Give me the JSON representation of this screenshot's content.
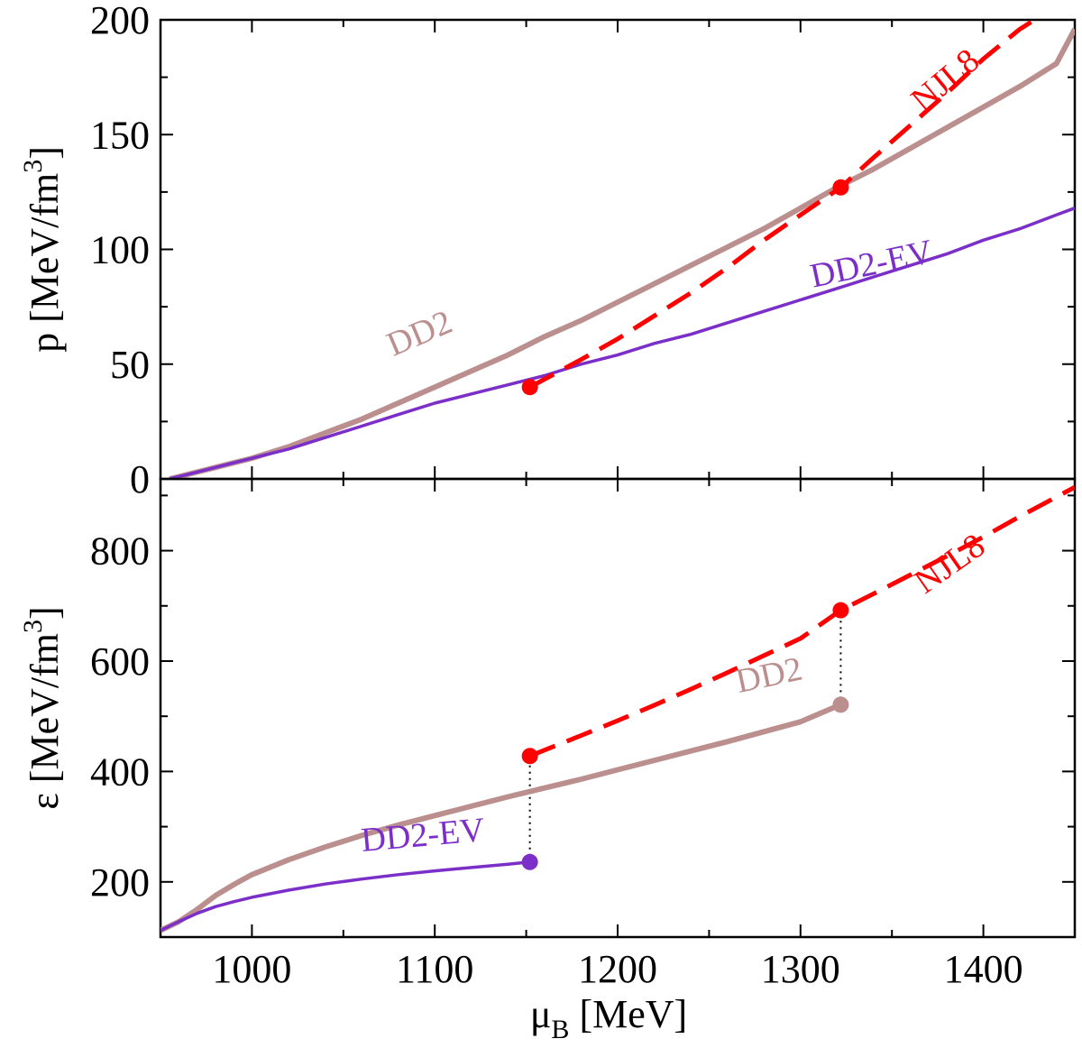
{
  "chart_data": [
    {
      "type": "line",
      "panel": "top",
      "xlabel": "",
      "ylabel": "p [MeV/fm",
      "ylabel_sup": "3",
      "ylabel_tail": "]",
      "xlim": [
        950,
        1450
      ],
      "ylim": [
        0,
        200
      ],
      "yticks": [
        0,
        50,
        100,
        150,
        200
      ],
      "xticks": [
        1000,
        1100,
        1200,
        1300,
        1400
      ],
      "grid": false,
      "series": [
        {
          "name": "DD2",
          "color": "#bc8f8f",
          "style": "solid-thick",
          "x": [
            955,
            960,
            970,
            980,
            990,
            1000,
            1020,
            1040,
            1060,
            1080,
            1100,
            1120,
            1140,
            1160,
            1180,
            1200,
            1220,
            1240,
            1260,
            1280,
            1300,
            1320,
            1340,
            1360,
            1380,
            1400,
            1420,
            1440,
            1450
          ],
          "y": [
            0,
            1,
            3,
            5,
            7,
            9,
            14,
            20,
            26,
            33,
            40,
            47,
            54,
            62,
            69,
            77,
            85,
            93,
            101,
            109,
            118,
            127,
            135,
            144,
            153,
            162,
            171,
            181,
            196
          ]
        },
        {
          "name": "DD2-EV",
          "color": "#7b2fc8",
          "style": "solid",
          "x": [
            955,
            960,
            970,
            980,
            990,
            1000,
            1020,
            1040,
            1060,
            1080,
            1100,
            1120,
            1140,
            1160,
            1180,
            1200,
            1220,
            1240,
            1260,
            1280,
            1300,
            1320,
            1340,
            1360,
            1380,
            1400,
            1420,
            1440,
            1450
          ],
          "y": [
            0,
            1,
            3,
            5,
            7,
            9,
            13,
            18,
            23,
            28,
            33,
            37,
            41,
            45,
            50,
            54,
            59,
            63,
            68,
            73,
            78,
            83,
            88,
            93,
            98,
            104,
            109,
            115,
            118
          ]
        },
        {
          "name": "NJL8",
          "color": "#ff0000",
          "style": "dashed",
          "x": [
            1152,
            1180,
            1200,
            1220,
            1240,
            1260,
            1280,
            1300,
            1322,
            1340,
            1360,
            1380,
            1400,
            1420,
            1430
          ],
          "y": [
            40,
            52,
            61,
            71,
            81,
            92,
            104,
            115,
            127,
            140,
            154,
            168,
            183,
            196,
            201
          ]
        }
      ],
      "markers": [
        {
          "x": 1152,
          "y": 40,
          "color": "#ff0000"
        },
        {
          "x": 1322,
          "y": 127,
          "color": "#ff0000"
        }
      ],
      "annotations": [
        {
          "text": "DD2",
          "color": "#bc8f8f",
          "x": 1094,
          "y": 59,
          "angle": -23
        },
        {
          "text": "DD2-EV",
          "color": "#7b2fc8",
          "x": 1340,
          "y": 89,
          "angle": -12
        },
        {
          "text": "NJL8",
          "color": "#ff0000",
          "x": 1383,
          "y": 170,
          "angle": -40
        }
      ]
    },
    {
      "type": "line",
      "panel": "bottom",
      "xlabel": "μ",
      "xlabel_sub": "B",
      "xlabel_tail": " [MeV]",
      "ylabel": "ε [MeV/fm",
      "ylabel_sup": "3",
      "ylabel_tail": "]",
      "xlim": [
        950,
        1450
      ],
      "ylim": [
        100,
        930
      ],
      "yticks": [
        200,
        400,
        600,
        800
      ],
      "xticks": [
        1000,
        1100,
        1200,
        1300,
        1400
      ],
      "grid": false,
      "series": [
        {
          "name": "DD2",
          "color": "#bc8f8f",
          "style": "solid-thick",
          "x": [
            950,
            960,
            970,
            980,
            990,
            1000,
            1020,
            1040,
            1060,
            1080,
            1100,
            1120,
            1140,
            1160,
            1180,
            1200,
            1220,
            1240,
            1260,
            1280,
            1300,
            1322
          ],
          "y": [
            112,
            128,
            150,
            175,
            195,
            213,
            240,
            263,
            284,
            303,
            320,
            337,
            354,
            370,
            386,
            403,
            420,
            437,
            454,
            472,
            490,
            521
          ]
        },
        {
          "name": "DD2-EV",
          "color": "#7b2fc8",
          "style": "solid",
          "x": [
            950,
            960,
            970,
            980,
            990,
            1000,
            1020,
            1040,
            1060,
            1080,
            1100,
            1120,
            1140,
            1152
          ],
          "y": [
            112,
            128,
            143,
            155,
            164,
            172,
            185,
            196,
            205,
            213,
            220,
            226,
            232,
            236
          ]
        },
        {
          "name": "NJL8",
          "color": "#ff0000",
          "style": "dashed",
          "x": [
            1152,
            1180,
            1200,
            1220,
            1240,
            1260,
            1280,
            1300,
            1322,
            1340,
            1360,
            1380,
            1400,
            1420,
            1450
          ],
          "y": [
            428,
            465,
            492,
            520,
            549,
            579,
            610,
            641,
            692,
            722,
            756,
            790,
            825,
            862,
            915
          ]
        }
      ],
      "markers": [
        {
          "x": 1152,
          "y": 428,
          "color": "#ff0000"
        },
        {
          "x": 1322,
          "y": 692,
          "color": "#ff0000"
        },
        {
          "x": 1322,
          "y": 521,
          "color": "#bc8f8f"
        },
        {
          "x": 1152,
          "y": 236,
          "color": "#7b2fc8"
        }
      ],
      "connectors": [
        {
          "x": 1152,
          "y1": 236,
          "y2": 428
        },
        {
          "x": 1322,
          "y1": 521,
          "y2": 692
        }
      ],
      "annotations": [
        {
          "text": "DD2-EV",
          "color": "#7b2fc8",
          "x": 1094,
          "y": 265,
          "angle": -5
        },
        {
          "text": "DD2",
          "color": "#bc8f8f",
          "x": 1284,
          "y": 555,
          "angle": -12
        },
        {
          "text": "NJL8",
          "color": "#ff0000",
          "x": 1385,
          "y": 760,
          "angle": -35
        }
      ]
    }
  ]
}
